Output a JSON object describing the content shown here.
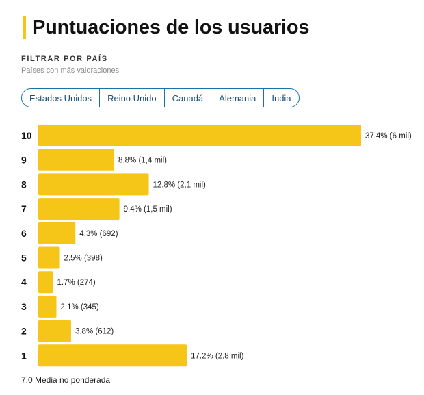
{
  "header": {
    "title": "Puntuaciones de los usuarios"
  },
  "filter": {
    "label": "FILTRAR POR PAÍS",
    "subtitle": "Países con más valoraciones",
    "countries": [
      "Estados Unidos",
      "Reino Unido",
      "Canadá",
      "Alemania",
      "India"
    ]
  },
  "colors": {
    "accent": "#f5c518",
    "chip_border": "#1a73a8",
    "chip_text": "#1a4f7a"
  },
  "chart_data": {
    "type": "bar",
    "orientation": "horizontal",
    "categories": [
      "10",
      "9",
      "8",
      "7",
      "6",
      "5",
      "4",
      "3",
      "2",
      "1"
    ],
    "values": [
      37.4,
      8.8,
      12.8,
      9.4,
      4.3,
      2.5,
      1.7,
      2.1,
      3.8,
      17.2
    ],
    "labels": [
      "37.4% (6 mil)",
      "8.8% (1,4 mil)",
      "12.8% (2,1 mil)",
      "9.4% (1,5 mil)",
      "4.3% (692)",
      "2.5% (398)",
      "1.7% (274)",
      "2.1% (345)",
      "3.8% (612)",
      "17.2% (2,8 mil)"
    ],
    "title": "",
    "xlabel": "",
    "ylabel": ""
  },
  "summary": {
    "mean_text": "7.0 Media no ponderada"
  }
}
